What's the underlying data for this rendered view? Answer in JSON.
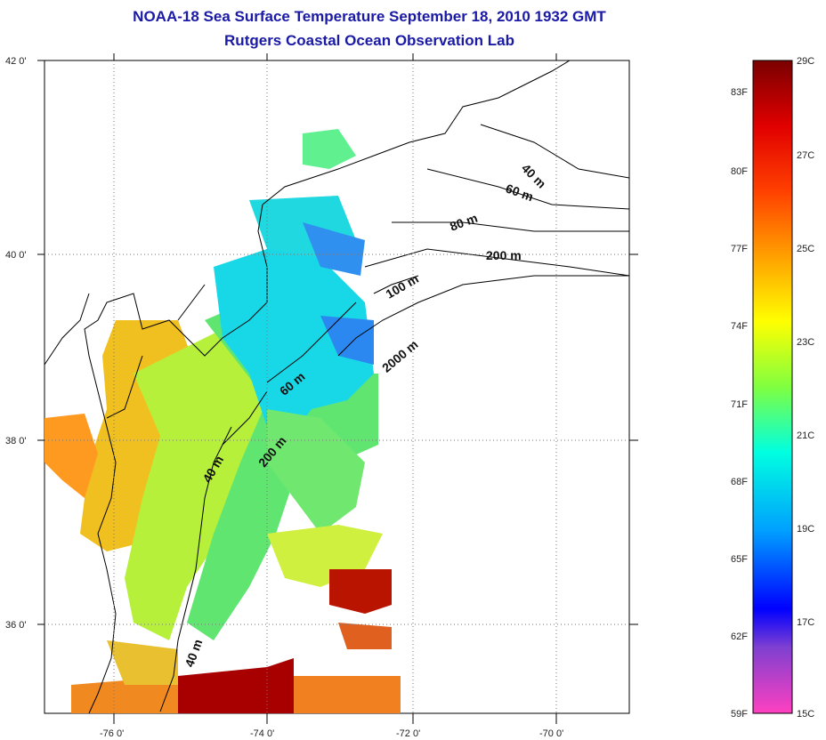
{
  "title": {
    "line1": "NOAA-18 Sea Surface Temperature September 18, 2010 1932 GMT",
    "line2": "Rutgers Coastal Ocean Observation Lab"
  },
  "map": {
    "x_ticks": [
      "-76 0'",
      "-74 0'",
      "-72 0'",
      "-70 0'"
    ],
    "y_ticks": [
      "42 0'",
      "40 0'",
      "38 0'",
      "36 0'"
    ],
    "isobath_labels": [
      "40 m",
      "60 m",
      "80 m",
      "200 m",
      "100 m",
      "2000 m",
      "60 m",
      "200 m",
      "40 m",
      "40 m"
    ]
  },
  "colorbar": {
    "celsius_labels": [
      "29C",
      "27C",
      "25C",
      "23C",
      "21C",
      "19C",
      "17C",
      "15C"
    ],
    "fahrenheit_labels": [
      "83F",
      "80F",
      "77F",
      "74F",
      "71F",
      "68F",
      "65F",
      "62F",
      "59F"
    ],
    "colors": {
      "top": "#8b0000",
      "red": "#ff1a00",
      "orange": "#ff8c00",
      "yellow": "#ffff00",
      "green": "#7fff3f",
      "cyan": "#00ffff",
      "blue": "#0040ff",
      "deep_blue": "#0000ff",
      "purple": "#a040d0",
      "bottom": "#ff40c0"
    }
  }
}
